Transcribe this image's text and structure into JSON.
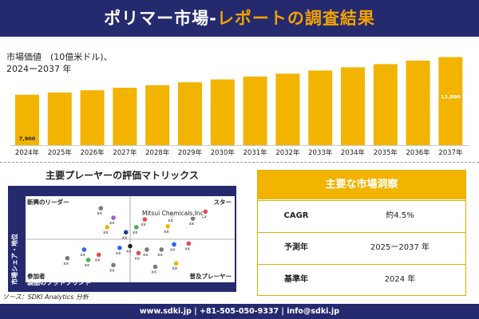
{
  "header": {
    "title_part1": "ポリマー市場-",
    "title_part2": "レポートの調査結果"
  },
  "chart_data": [
    {
      "type": "bar",
      "title_line1": "市場価値　(10億米ドル)、",
      "title_line2": "2024ー2037 年",
      "categories": [
        "2024年",
        "2025年",
        "2026年",
        "2027年",
        "2028年",
        "2029年",
        "2030年",
        "2031年",
        "2032年",
        "2033年",
        "2034年",
        "2035年",
        "2036年",
        "2037年"
      ],
      "values": [
        7.9,
        8.25,
        8.6,
        9.0,
        9.4,
        9.85,
        10.3,
        10.75,
        11.2,
        11.7,
        12.2,
        12.7,
        13.25,
        13.8
      ],
      "data_labels": {
        "first": "7,900",
        "last": "13,800"
      },
      "ylim": [
        0,
        14
      ],
      "bar_color": "#f2b400"
    }
  ],
  "matrix": {
    "title": "主要プレーヤーの評価マトリックス",
    "x_axis": "製品のフットプリント",
    "y_axis": "市場シェア・地位",
    "quadrants": {
      "top_left": "新興のリーダー",
      "top_right": "スター",
      "bottom_left": "参加者",
      "bottom_right": "普及プレーヤー"
    },
    "highlight": "Mitsui Chemicals,Inc",
    "point_label": "xx",
    "points": [
      {
        "x": 0.36,
        "y": 0.14,
        "c": "#7a7a7a"
      },
      {
        "x": 0.42,
        "y": 0.25,
        "c": "#9b5fc0"
      },
      {
        "x": 0.57,
        "y": 0.27,
        "c": "#e44c4c"
      },
      {
        "x": 0.53,
        "y": 0.36,
        "c": "#4caf50"
      },
      {
        "x": 0.7,
        "y": 0.22,
        "c": "#2e7d32"
      },
      {
        "x": 0.68,
        "y": 0.35,
        "c": "#f2b400"
      },
      {
        "x": 0.86,
        "y": 0.18,
        "c": "#e44c4c"
      },
      {
        "x": 0.8,
        "y": 0.26,
        "c": "#7a7a7a"
      },
      {
        "x": 0.39,
        "y": 0.36,
        "c": "#f2b400"
      },
      {
        "x": 0.48,
        "y": 0.42,
        "c": "#1e3a8a"
      },
      {
        "x": 0.5,
        "y": 0.58,
        "c": "#222222"
      },
      {
        "x": 0.45,
        "y": 0.6,
        "c": "#2962ff"
      },
      {
        "x": 0.35,
        "y": 0.68,
        "c": "#e44c4c"
      },
      {
        "x": 0.3,
        "y": 0.74,
        "c": "#4caf50"
      },
      {
        "x": 0.54,
        "y": 0.66,
        "c": "#e44c4c"
      },
      {
        "x": 0.28,
        "y": 0.62,
        "c": "#2962ff"
      },
      {
        "x": 0.58,
        "y": 0.62,
        "c": "#7a7a7a"
      },
      {
        "x": 0.65,
        "y": 0.62,
        "c": "#7a7a7a"
      },
      {
        "x": 0.71,
        "y": 0.56,
        "c": "#2962ff"
      },
      {
        "x": 0.78,
        "y": 0.55,
        "c": "#e44c4c"
      },
      {
        "x": 0.62,
        "y": 0.82,
        "c": "#7a7a7a"
      },
      {
        "x": 0.72,
        "y": 0.78,
        "c": "#f2b400"
      },
      {
        "x": 0.42,
        "y": 0.8,
        "c": "#7a7a7a"
      },
      {
        "x": 0.2,
        "y": 0.72,
        "c": "#7a7a7a"
      }
    ]
  },
  "source": "ソース：SDKI Analytics 分析",
  "key_insights": {
    "title": "主要な市場洞察",
    "rows": [
      {
        "label": "CAGR",
        "value": "約4.5%"
      },
      {
        "label": "予測年",
        "value": "2025ー2037 年"
      },
      {
        "label": "基準年",
        "value": "2024 年"
      }
    ]
  },
  "footer": "www.sdki.jp | +81-505-050-9337 | info@sdki.jp"
}
